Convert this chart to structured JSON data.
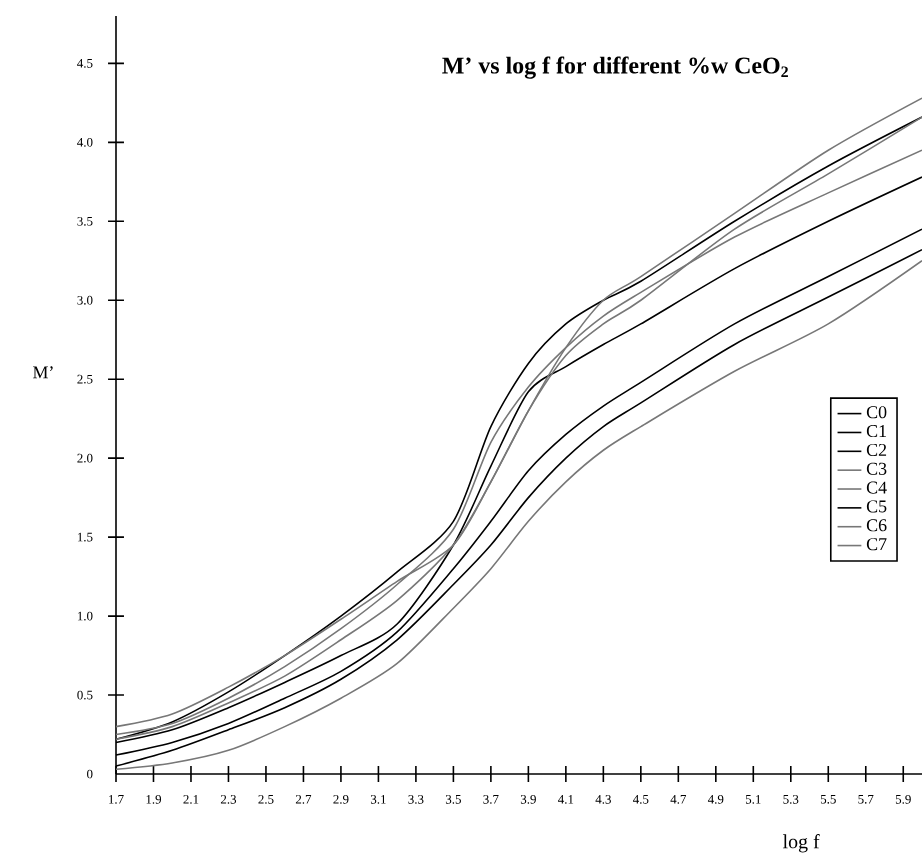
{
  "chart_data": {
    "type": "line",
    "title": "M’ vs log f for different %w CeO$_{2}$",
    "xlabel": "log f",
    "ylabel": "M’",
    "x": [
      1.7,
      2.0,
      2.3,
      2.6,
      2.9,
      3.2,
      3.5,
      3.7,
      3.9,
      4.1,
      4.3,
      4.5,
      5.0,
      5.5,
      6.0
    ],
    "series": [
      {
        "name": "C0",
        "color": "#000000",
        "values": [
          0.22,
          0.33,
          0.52,
          0.75,
          1.0,
          1.28,
          1.6,
          2.2,
          2.6,
          2.85,
          3.0,
          3.12,
          3.5,
          3.85,
          4.16
        ]
      },
      {
        "name": "C1",
        "color": "#000000",
        "values": [
          0.2,
          0.28,
          0.42,
          0.58,
          0.75,
          0.95,
          1.45,
          1.95,
          2.42,
          2.58,
          2.72,
          2.85,
          3.2,
          3.5,
          3.78
        ]
      },
      {
        "name": "C2",
        "color": "#000000",
        "values": [
          0.12,
          0.2,
          0.32,
          0.48,
          0.65,
          0.9,
          1.3,
          1.6,
          1.92,
          2.15,
          2.33,
          2.48,
          2.85,
          3.15,
          3.45
        ]
      },
      {
        "name": "C3",
        "color": "#777777",
        "values": [
          0.3,
          0.38,
          0.55,
          0.75,
          0.98,
          1.22,
          1.45,
          1.85,
          2.3,
          2.7,
          3.0,
          3.15,
          3.55,
          3.95,
          4.28
        ]
      },
      {
        "name": "C4",
        "color": "#777777",
        "values": [
          0.25,
          0.32,
          0.48,
          0.68,
          0.92,
          1.2,
          1.55,
          2.1,
          2.45,
          2.7,
          2.9,
          3.05,
          3.4,
          3.68,
          3.95
        ]
      },
      {
        "name": "C5",
        "color": "#000000",
        "values": [
          0.05,
          0.15,
          0.28,
          0.42,
          0.6,
          0.85,
          1.2,
          1.45,
          1.75,
          2.0,
          2.2,
          2.35,
          2.72,
          3.02,
          3.32
        ]
      },
      {
        "name": "C6",
        "color": "#777777",
        "values": [
          0.22,
          0.3,
          0.45,
          0.62,
          0.85,
          1.1,
          1.45,
          1.85,
          2.3,
          2.65,
          2.85,
          3.0,
          3.45,
          3.8,
          4.16
        ]
      },
      {
        "name": "C7",
        "color": "#777777",
        "values": [
          0.03,
          0.07,
          0.15,
          0.3,
          0.48,
          0.7,
          1.05,
          1.3,
          1.6,
          1.85,
          2.05,
          2.2,
          2.55,
          2.85,
          3.25
        ]
      }
    ],
    "xlim": [
      1.7,
      6.0
    ],
    "ylim": [
      0,
      4.8
    ],
    "xticks": [
      1.7,
      1.9,
      2.1,
      2.3,
      2.5,
      2.7,
      2.9,
      3.1,
      3.3,
      3.5,
      3.7,
      3.9,
      4.1,
      4.3,
      4.5,
      4.7,
      4.9,
      5.1,
      5.3,
      5.5,
      5.7,
      5.9
    ],
    "yticks": [
      0,
      0.5,
      {
        "value": 1,
        "label": "1.0"
      },
      1.5,
      {
        "value": 2,
        "label": "2.0"
      },
      2.5,
      {
        "value": 3,
        "label": "3.0"
      },
      3.5,
      {
        "value": 4,
        "label": "4.0"
      },
      4.5
    ],
    "legend": "right",
    "grid": false,
    "marker": "none",
    "line_style": "solid"
  }
}
